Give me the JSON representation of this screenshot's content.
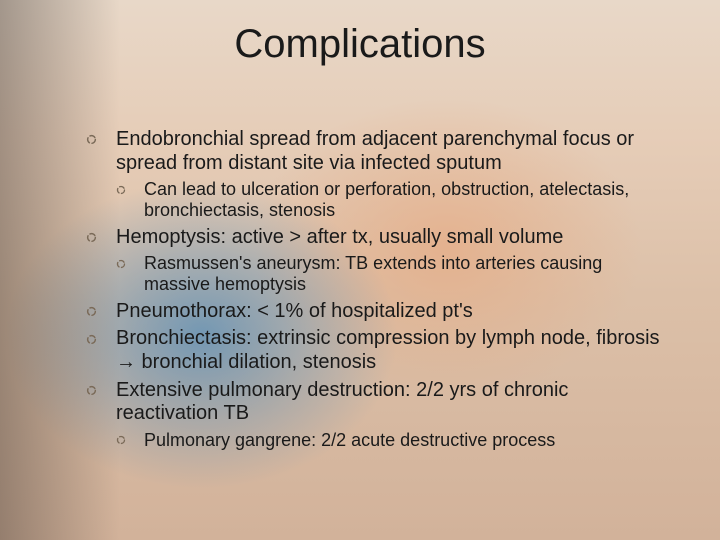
{
  "title": "Complications",
  "bullet_color": "#7a6a58",
  "text_color": "#1a1a1a",
  "title_fontsize": 40,
  "level1_fontsize": 20,
  "level2_fontsize": 18,
  "bullets": [
    {
      "level": 1,
      "text": "Endobronchial spread from adjacent parenchymal focus or spread from distant site via infected sputum"
    },
    {
      "level": 2,
      "text": "Can lead to ulceration or perforation, obstruction, atelectasis, bronchiectasis, stenosis"
    },
    {
      "level": 1,
      "text": "Hemoptysis: active > after tx, usually small volume"
    },
    {
      "level": 2,
      "text": "Rasmussen's aneurysm: TB extends into arteries causing massive hemoptysis"
    },
    {
      "level": 1,
      "text": "Pneumothorax: < 1% of hospitalized pt's"
    },
    {
      "level": 1,
      "text": "Bronchiectasis: extrinsic compression by lymph node, fibrosis → bronchial dilation, stenosis"
    },
    {
      "level": 1,
      "text": "Extensive pulmonary destruction: 2/2 yrs of chronic reactivation TB"
    },
    {
      "level": 2,
      "text": "Pulmonary gangrene: 2/2 acute destructive process"
    }
  ]
}
